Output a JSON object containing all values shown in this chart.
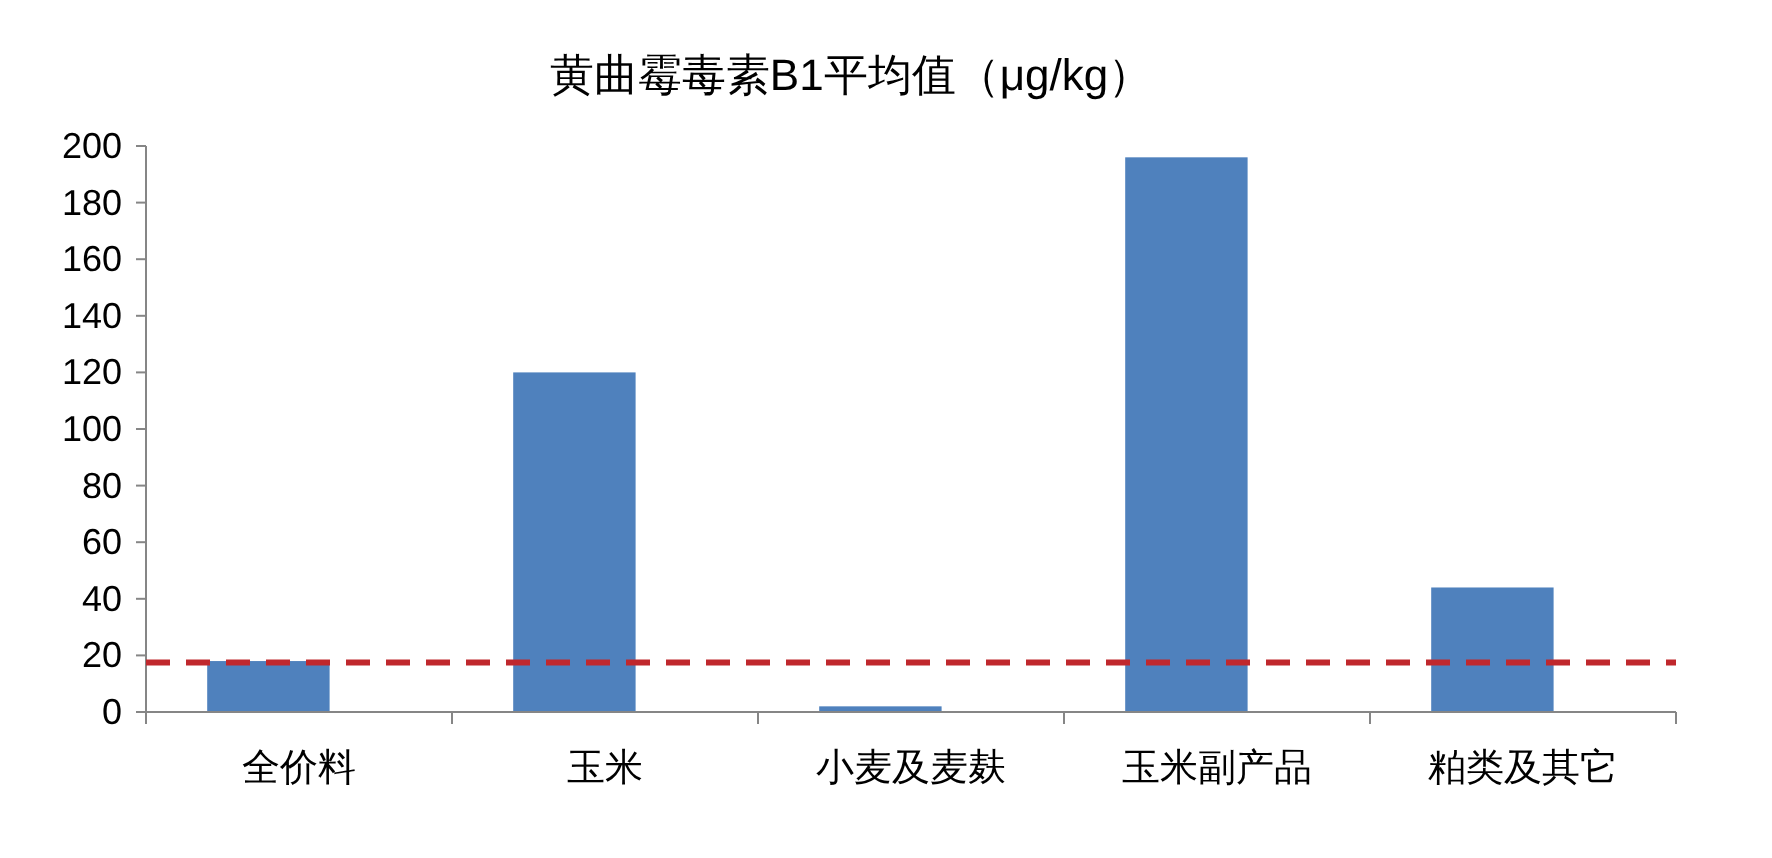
{
  "chart_data": {
    "type": "bar",
    "title": "黄曲霉毒素B1平均值（μg/kg）",
    "categories": [
      "全价料",
      "玉米",
      "小麦及麦麸",
      "玉米副产品",
      "粕类及其它"
    ],
    "series": [
      {
        "color": "#4f81bd",
        "values": [
          18,
          120,
          2,
          196,
          44
        ]
      }
    ],
    "ylim": [
      0,
      200
    ],
    "yticks": [
      0,
      20,
      40,
      60,
      80,
      100,
      120,
      140,
      160,
      180,
      200
    ],
    "ref_lines": [
      {
        "axis": "y",
        "value": 17.5,
        "color": "#c0282d",
        "line_style": "dashed"
      }
    ],
    "grid": false
  }
}
